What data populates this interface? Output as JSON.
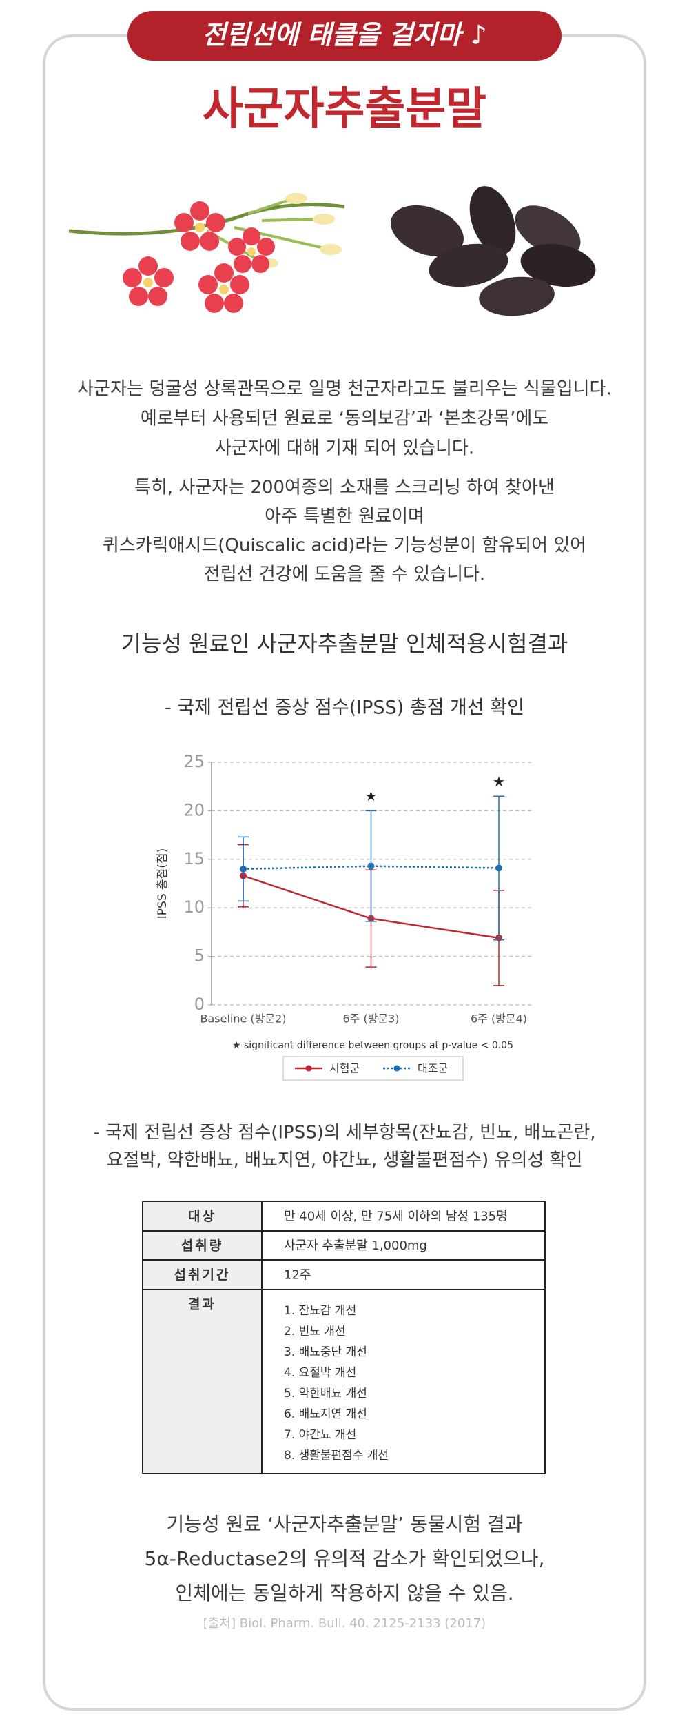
{
  "banner": "전립선에 태클을 걸지마 ♪",
  "title": "사군자추출분말",
  "intro": {
    "paragraph1": [
      "사군자는 덩굴성 상록관목으로 일명 천군자라고도 불리우는 식물입니다.",
      "예로부터 사용되던 원료로 ‘동의보감’과 ‘본초강목’에도",
      "사군자에 대해 기재 되어 있습니다."
    ],
    "paragraph2": [
      "특히, 사군자는 200여종의 소재를 스크리닝 하여 찾아낸",
      "아주 특별한 원료이며",
      "퀴스카릭애시드(Quiscalic acid)라는 기능성분이 함유되어 있어",
      "전립선 건강에 도움을 줄 수 있습니다."
    ]
  },
  "section_title": "기능성 원료인 사군자추출분말 인체적용시험결과",
  "chart_subtitle": "- 국제 전립선 증상 점수(IPSS) 총점 개선 확인",
  "chart_data": {
    "type": "line",
    "y_label": "IPSS 총점(점)",
    "categories": [
      "Baseline (방문2)",
      "6주 (방문3)",
      "6주 (방문4)"
    ],
    "series": [
      {
        "name": "시험군",
        "color": "#c0282d",
        "values": [
          13.3,
          8.9,
          6.9
        ],
        "errors": [
          3.2,
          5.0,
          4.9
        ],
        "style": "solid"
      },
      {
        "name": "대조군",
        "color": "#1f6fb5",
        "values": [
          14.0,
          14.3,
          14.1
        ],
        "errors": [
          3.3,
          5.7,
          7.4
        ],
        "style": "dotted"
      }
    ],
    "markers": [
      null,
      "★",
      "★"
    ],
    "footnote": "★ significant difference between groups at p-value < 0.05",
    "ylim": [
      0,
      25
    ],
    "yticks": [
      0,
      5,
      10,
      15,
      20,
      25
    ],
    "grid": true
  },
  "detail_subtitle": [
    "- 국제 전립선 증상 점수(IPSS)의 세부항목(잔뇨감, 빈뇨, 배뇨곤란,",
    "요절박, 약한배뇨, 배뇨지연, 야간뇨, 생활불편점수) 유의성 확인"
  ],
  "table": {
    "rows": [
      [
        "대상",
        "만 40세 이상, 만 75세 이하의 남성 135명"
      ],
      [
        "섭취량",
        "사군자 추출분말 1,000mg"
      ],
      [
        "섭취기간",
        "12주"
      ]
    ],
    "result_label": "결과",
    "results": [
      "1. 잔뇨감 개선",
      "2. 빈뇨 개선",
      "3. 배뇨중단 개선",
      "4. 요절박 개선",
      "5. 약한배뇨 개선",
      "6. 배뇨지연 개선",
      "7. 야간뇨 개선",
      "8. 생활불편점수 개선"
    ]
  },
  "footer": {
    "lines": [
      "기능성 원료 ‘사군자추출분말’ 동물시험 결과",
      "5α-Reductase2의 유의적 감소가 확인되었으나,",
      "인체에는 동일하게 작용하지 않을 수 있음."
    ],
    "source": "[출처] Biol. Pharm. Bull. 40. 2125-2133 (2017)"
  }
}
